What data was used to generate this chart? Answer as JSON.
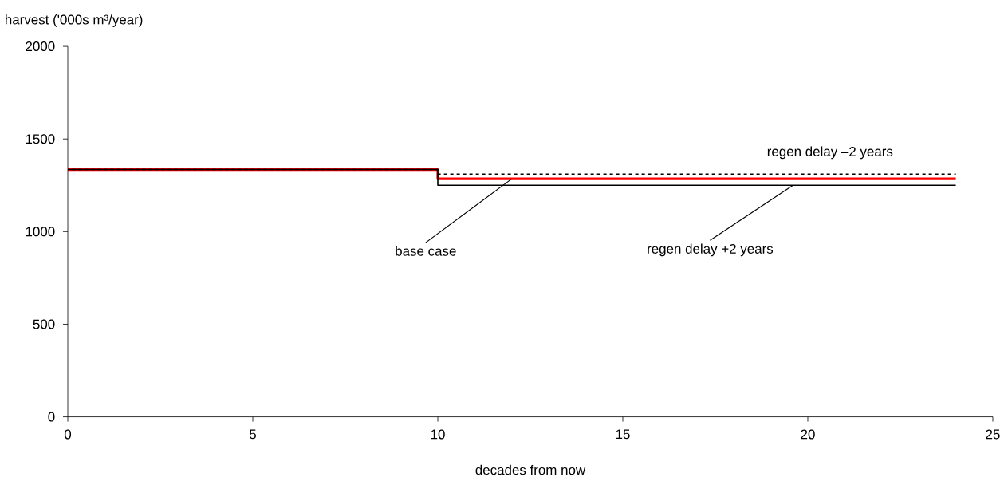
{
  "chart_data": {
    "type": "step",
    "xlabel": "decades from now",
    "ylabel": "harvest ('000s m³/year)",
    "x": [
      0,
      10,
      24
    ],
    "series": [
      {
        "color": "#ff0000",
        "line_style": "solid",
        "values": [
          1335,
          1285,
          1285
        ]
      },
      {
        "color": "#000000",
        "line_style": "dotted",
        "values": [
          1335,
          1310,
          1310
        ]
      },
      {
        "color": "#000000",
        "line_style": "solid",
        "values": [
          1335,
          1250,
          1250
        ]
      }
    ],
    "xlim": [
      0,
      25
    ],
    "xticks": [
      0,
      5,
      10,
      15,
      20,
      25
    ],
    "ylim": [
      0,
      2000
    ],
    "yticks": [
      0,
      500,
      1000,
      1500,
      2000
    ],
    "marker": "none",
    "annotations": [
      {
        "text": "base case",
        "x": 12.0,
        "y": 1285
      },
      {
        "text": "regen delay +2 years",
        "x": 19.6,
        "y": 1250
      },
      {
        "text": "regen delay –2 years",
        "x": 20.6,
        "y": 1310
      }
    ]
  }
}
